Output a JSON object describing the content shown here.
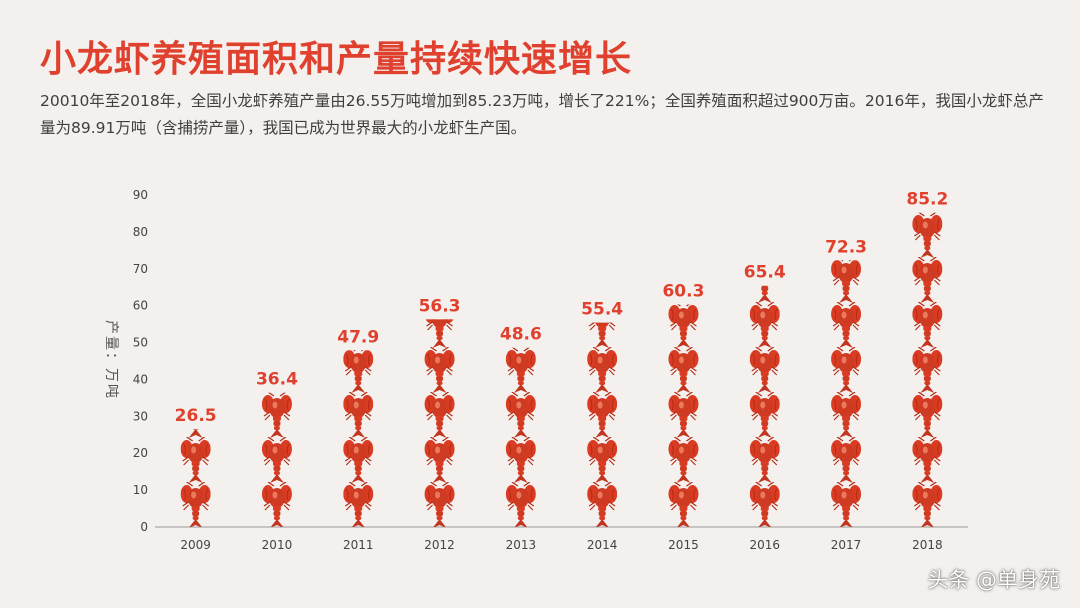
{
  "page": {
    "title": "小龙虾养殖面积和产量持续快速增长",
    "subtitle": "20010年至2018年，全国小龙虾养殖产量由26.55万吨增加到85.23万吨，增长了221%；全国养殖面积超过900万亩。2016年，我国小龙虾总产量为89.91万吨（含捕捞产量），我国已成为世界最大的小龙虾生产国。",
    "watermark": "头条 @单身苑",
    "colors": {
      "title": "#e0412e",
      "label": "#e0412e",
      "crayfish": "#d93c23",
      "crayfish_dark": "#b32a14",
      "background": "#f3f0ee"
    },
    "icon": "crayfish-icon"
  },
  "chart_data": {
    "type": "bar",
    "title": "",
    "xlabel": "",
    "ylabel": "产量：万吨",
    "categories": [
      "2009",
      "2010",
      "2011",
      "2012",
      "2013",
      "2014",
      "2015",
      "2016",
      "2017",
      "2018"
    ],
    "values": [
      26.5,
      36.4,
      47.9,
      56.3,
      48.6,
      55.4,
      60.3,
      65.4,
      72.3,
      85.2
    ],
    "data_labels": [
      "26.5",
      "36.4",
      "47.9",
      "56.3",
      "48.6",
      "55.4",
      "60.3",
      "65.4",
      "72.3",
      "85.2"
    ],
    "ylim": [
      0,
      90
    ],
    "yticks": [
      "0",
      "10",
      "20",
      "30",
      "40",
      "50",
      "60",
      "70",
      "80",
      "90"
    ],
    "grid": false,
    "legend": "none"
  }
}
